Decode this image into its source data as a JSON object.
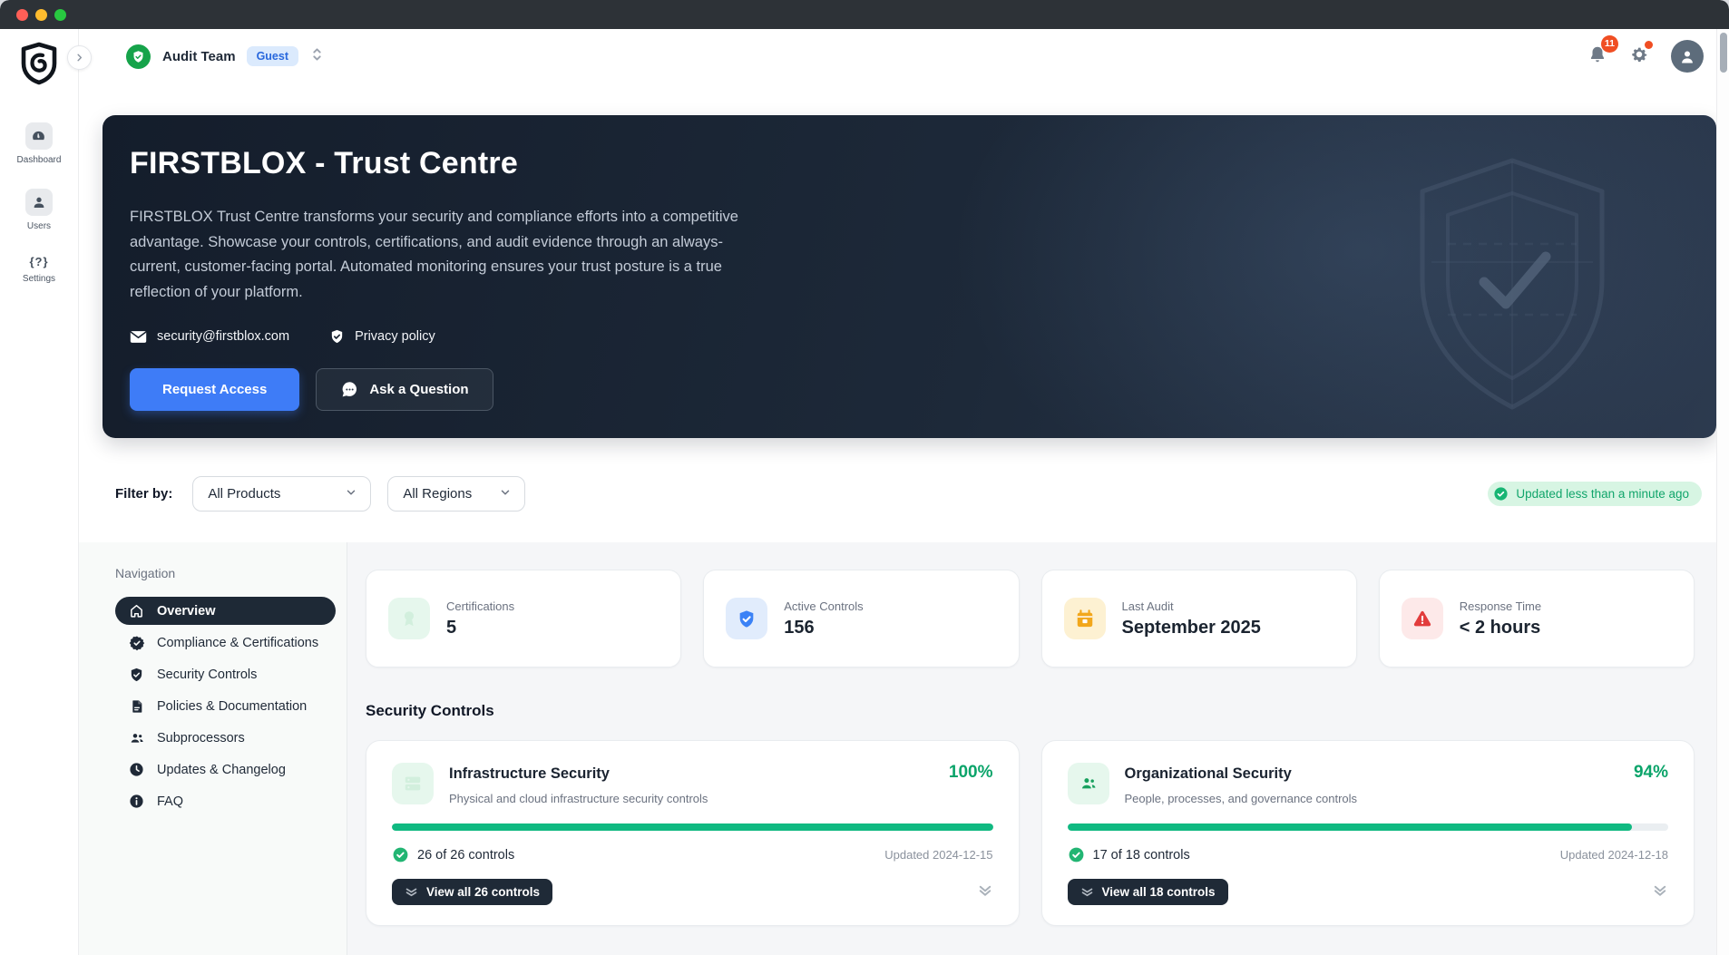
{
  "header": {
    "team_name": "Audit Team",
    "role_badge": "Guest",
    "notification_count": "11"
  },
  "sidebar": {
    "items": [
      {
        "label": "Dashboard",
        "icon": "gauge-icon"
      },
      {
        "label": "Users",
        "icon": "user-icon"
      },
      {
        "label": "Settings",
        "icon": "braces-question-icon",
        "glyph": "{?}"
      }
    ]
  },
  "hero": {
    "title": "FIRSTBLOX - Trust Centre",
    "description": "FIRSTBLOX Trust Centre transforms your security and compliance efforts into a competitive advantage. Showcase your controls, certifications, and audit evidence through an always-current, customer-facing portal. Automated monitoring ensures your trust posture is a true reflection of your platform.",
    "email": "security@firstblox.com",
    "privacy_label": "Privacy policy",
    "request_button": "Request Access",
    "ask_button": "Ask a Question"
  },
  "filter": {
    "label": "Filter by:",
    "products_value": "All Products",
    "regions_value": "All Regions",
    "updated_badge": "Updated less than a minute ago"
  },
  "navigation": {
    "title": "Navigation",
    "items": [
      {
        "label": "Overview",
        "icon": "home-icon",
        "active": true
      },
      {
        "label": "Compliance & Certifications",
        "icon": "badge-check-icon",
        "active": false
      },
      {
        "label": "Security Controls",
        "icon": "shield-check-icon",
        "active": false
      },
      {
        "label": "Policies & Documentation",
        "icon": "document-icon",
        "active": false
      },
      {
        "label": "Subprocessors",
        "icon": "people-icon",
        "active": false
      },
      {
        "label": "Updates & Changelog",
        "icon": "clock-icon",
        "active": false
      },
      {
        "label": "FAQ",
        "icon": "info-icon",
        "active": false
      }
    ]
  },
  "stats": {
    "cards": [
      {
        "label": "Certifications",
        "value": "5",
        "icon": "certificate-icon",
        "tile_color": "#e6f7ed"
      },
      {
        "label": "Active Controls",
        "value": "156",
        "icon": "shield-check-icon",
        "tile_color": "#e1ecfc"
      },
      {
        "label": "Last Audit",
        "value": "September 2025",
        "icon": "calendar-icon",
        "tile_color": "#fdf1d2"
      },
      {
        "label": "Response Time",
        "value": "< 2 hours",
        "icon": "warning-triangle-icon",
        "tile_color": "#fde9e9"
      }
    ]
  },
  "controls_section": {
    "heading": "Security Controls",
    "cards": [
      {
        "title": "Infrastructure Security",
        "subtitle": "Physical and cloud infrastructure security controls",
        "percent_label": "100%",
        "progress": 100,
        "controls_count": "26 of 26 controls",
        "updated": "Updated 2024-12-15",
        "view_all_label": "View all 26 controls"
      },
      {
        "title": "Organizational Security",
        "subtitle": "People, processes, and governance controls",
        "percent_label": "94%",
        "progress": 94,
        "controls_count": "17 of 18 controls",
        "updated": "Updated 2024-12-18",
        "view_all_label": "View all 18 controls"
      }
    ]
  },
  "colors": {
    "accent_blue": "#3e7cf7",
    "success_green": "#10b981",
    "alert_orange": "#f04e23",
    "warning_amber": "#f2a71b",
    "danger_red": "#e23c3c",
    "hero_navy": "#141d2b",
    "dark_pill": "#1e2936",
    "guest_badge_bg": "#dbeafd",
    "guest_badge_text": "#2968dd",
    "updated_badge_bg": "#d7f5e3",
    "updated_badge_text": "#11a56b"
  }
}
